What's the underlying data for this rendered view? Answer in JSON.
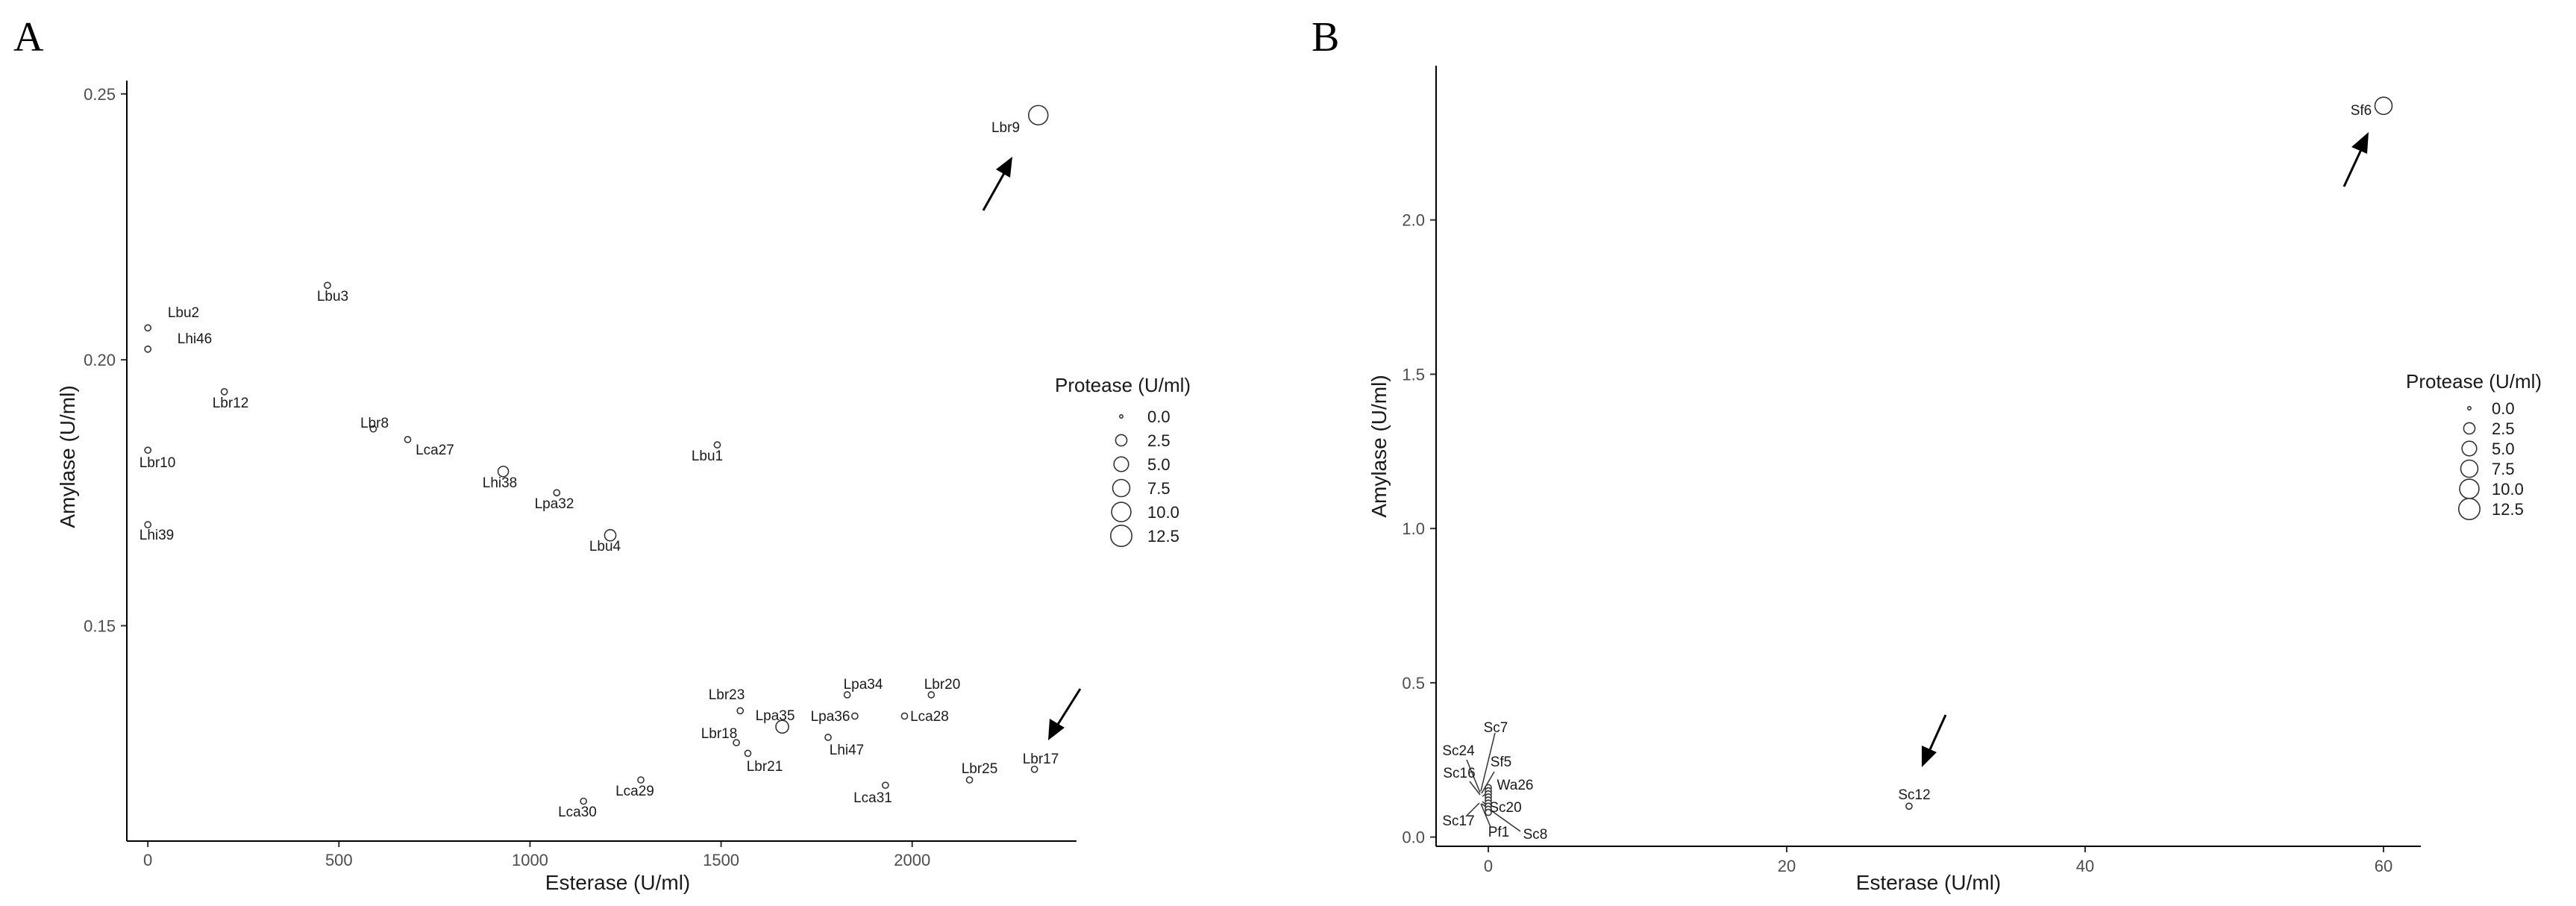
{
  "panels": [
    "A",
    "B"
  ],
  "chart_data": [
    {
      "type": "scatter",
      "panel": "A",
      "xlabel": "Esterase (U/ml)",
      "ylabel": "Amylase (U/ml)",
      "xlim": [
        -55,
        2430
      ],
      "ylim": [
        0.1095,
        0.2525
      ],
      "xticks": [
        0,
        500,
        1000,
        1500,
        2000
      ],
      "yticks": [
        0.15,
        0.2,
        0.25
      ],
      "ytick_labels": [
        "0.15",
        "0.20",
        "0.25"
      ],
      "size_legend": {
        "title": "Protease (U/ml)",
        "values": [
          0.0,
          2.5,
          5.0,
          7.5,
          10.0,
          12.5
        ],
        "labels": [
          "0.0",
          "2.5",
          "5.0",
          "7.5",
          "10.0",
          "12.5"
        ],
        "max": 12.5
      },
      "points": [
        {
          "label": "Lbr9",
          "x": 2330,
          "y": 0.246,
          "protease": 10.0
        },
        {
          "label": "Lbu3",
          "x": 470,
          "y": 0.214,
          "protease": 0.3
        },
        {
          "label": "Lbu2",
          "x": 0,
          "y": 0.206,
          "protease": 0.3
        },
        {
          "label": "Lhi46",
          "x": 0,
          "y": 0.202,
          "protease": 0.3
        },
        {
          "label": "Lbr12",
          "x": 200,
          "y": 0.194,
          "protease": 0.3
        },
        {
          "label": "Lbr8",
          "x": 590,
          "y": 0.187,
          "protease": 0.3
        },
        {
          "label": "Lca27",
          "x": 680,
          "y": 0.185,
          "protease": 0.3
        },
        {
          "label": "Lbr10",
          "x": 0,
          "y": 0.183,
          "protease": 0.3
        },
        {
          "label": "Lbu1",
          "x": 1490,
          "y": 0.184,
          "protease": 0.3
        },
        {
          "label": "Lhi38",
          "x": 930,
          "y": 0.179,
          "protease": 2.0
        },
        {
          "label": "Lpa32",
          "x": 1070,
          "y": 0.175,
          "protease": 0.3
        },
        {
          "label": "Lhi39",
          "x": 0,
          "y": 0.169,
          "protease": 0.3
        },
        {
          "label": "Lbu4",
          "x": 1210,
          "y": 0.167,
          "protease": 2.5
        },
        {
          "label": "Lpa34",
          "x": 1830,
          "y": 0.137,
          "protease": 0.3
        },
        {
          "label": "Lbr20",
          "x": 2050,
          "y": 0.137,
          "protease": 0.3
        },
        {
          "label": "Lbr23",
          "x": 1550,
          "y": 0.134,
          "protease": 0.3
        },
        {
          "label": "Lpa35",
          "x": 1660,
          "y": 0.131,
          "protease": 3.5
        },
        {
          "label": "Lpa36",
          "x": 1850,
          "y": 0.133,
          "protease": 0.3
        },
        {
          "label": "Lca28",
          "x": 1980,
          "y": 0.133,
          "protease": 0.3
        },
        {
          "label": "Lbr18",
          "x": 1540,
          "y": 0.128,
          "protease": 0.3
        },
        {
          "label": "Lhi47",
          "x": 1780,
          "y": 0.129,
          "protease": 0.3
        },
        {
          "label": "Lbr21",
          "x": 1570,
          "y": 0.126,
          "protease": 0.3
        },
        {
          "label": "Lbr17",
          "x": 2320,
          "y": 0.123,
          "protease": 0.3
        },
        {
          "label": "Lbr25",
          "x": 2150,
          "y": 0.121,
          "protease": 0.3
        },
        {
          "label": "Lca29",
          "x": 1290,
          "y": 0.121,
          "protease": 0.3
        },
        {
          "label": "Lca31",
          "x": 1930,
          "y": 0.12,
          "protease": 0.3
        },
        {
          "label": "Lca30",
          "x": 1140,
          "y": 0.117,
          "protease": 0.3
        }
      ]
    },
    {
      "type": "scatter",
      "panel": "B",
      "xlabel": "Esterase (U/ml)",
      "ylabel": "Amylase (U/ml)",
      "xlim": [
        -3.5,
        62.5
      ],
      "ylim": [
        -0.03,
        2.5
      ],
      "xticks": [
        0,
        20,
        40,
        60
      ],
      "yticks": [
        0.0,
        0.5,
        1.0,
        1.5,
        2.0
      ],
      "ytick_labels": [
        "0.0",
        "0.5",
        "1.0",
        "1.5",
        "2.0"
      ],
      "size_legend": {
        "title": "Protease (U/ml)",
        "values": [
          0.0,
          2.5,
          5.0,
          7.5,
          10.0,
          12.5
        ],
        "labels": [
          "0.0",
          "2.5",
          "5.0",
          "7.5",
          "10.0",
          "12.5"
        ],
        "max": 12.5
      },
      "points": [
        {
          "label": "Sf6",
          "x": 60,
          "y": 2.37,
          "protease": 7.5
        },
        {
          "label": "Sc12",
          "x": 28.2,
          "y": 0.1,
          "protease": 0.3
        },
        {
          "label": "Sc7",
          "x": 0,
          "y": 0.16,
          "protease": 0.3
        },
        {
          "label": "Sc24",
          "x": 0,
          "y": 0.15,
          "protease": 0.3
        },
        {
          "label": "Sf5",
          "x": 0,
          "y": 0.14,
          "protease": 0.3
        },
        {
          "label": "Sc16",
          "x": 0,
          "y": 0.13,
          "protease": 0.3
        },
        {
          "label": "Wa26",
          "x": 0,
          "y": 0.12,
          "protease": 0.3
        },
        {
          "label": "Sc20",
          "x": 0,
          "y": 0.11,
          "protease": 0.3
        },
        {
          "label": "Sc17",
          "x": 0,
          "y": 0.1,
          "protease": 0.3
        },
        {
          "label": "Pf1",
          "x": 0,
          "y": 0.09,
          "protease": 0.3
        },
        {
          "label": "Sc8",
          "x": 0,
          "y": 0.08,
          "protease": 0.3
        }
      ]
    }
  ]
}
